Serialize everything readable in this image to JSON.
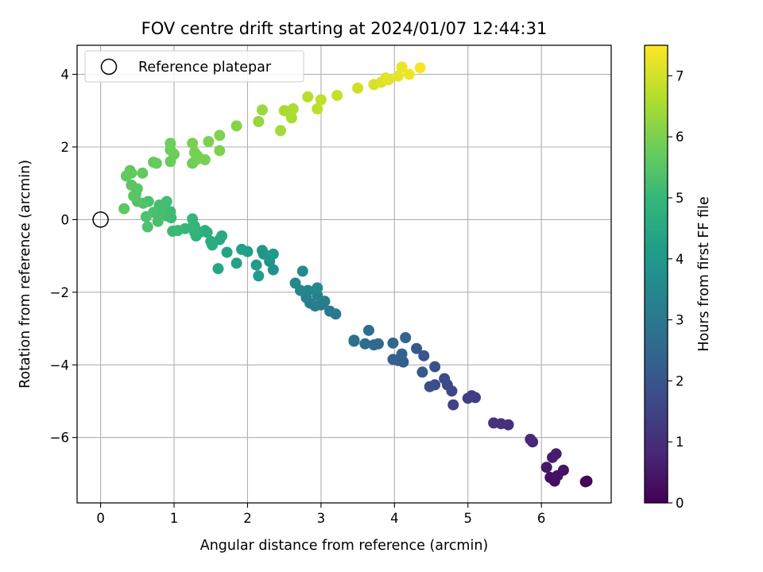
{
  "chart_data": {
    "type": "scatter",
    "title": "FOV centre drift starting at 2024/01/07 12:44:31",
    "xlabel": "Angular distance from reference (arcmin)",
    "ylabel": "Rotation from reference (arcmin)",
    "xlim": [
      -0.32,
      6.95
    ],
    "ylim": [
      -7.8,
      4.8
    ],
    "xticks": [
      0,
      1,
      2,
      3,
      4,
      5,
      6
    ],
    "yticks": [
      -6,
      -4,
      -2,
      0,
      2,
      4
    ],
    "xtick_labels": [
      "0",
      "1",
      "2",
      "3",
      "4",
      "5",
      "6"
    ],
    "ytick_labels": [
      "−6",
      "−4",
      "−2",
      "0",
      "2",
      "4"
    ],
    "grid": true,
    "legend": {
      "position": "top-left",
      "entries": [
        "Reference platepar"
      ]
    },
    "reference_point": {
      "x": 0,
      "y": 0,
      "label": "Reference platepar"
    },
    "colorbar": {
      "label": "Hours from first FF file",
      "range": [
        0,
        7.5
      ],
      "ticks": [
        0,
        1,
        2,
        3,
        4,
        5,
        6,
        7
      ],
      "tick_labels": [
        "0",
        "1",
        "2",
        "3",
        "4",
        "5",
        "6",
        "7"
      ],
      "colormap": "viridis",
      "stops": [
        "#440154",
        "#482878",
        "#3e4989",
        "#31688e",
        "#26828e",
        "#1f9e89",
        "#35b779",
        "#6ece58",
        "#b5de2b",
        "#fde725"
      ]
    },
    "series": [
      {
        "color_by": "Hours from first FF file",
        "points": [
          [
            6.62,
            -7.2,
            0.05
          ],
          [
            6.6,
            -7.22,
            0.1
          ],
          [
            6.18,
            -7.2,
            0.25
          ],
          [
            6.12,
            -7.1,
            0.3
          ],
          [
            6.22,
            -7.05,
            0.35
          ],
          [
            6.3,
            -6.9,
            0.4
          ],
          [
            6.07,
            -6.82,
            0.45
          ],
          [
            6.15,
            -6.55,
            0.55
          ],
          [
            6.2,
            -6.45,
            0.6
          ],
          [
            5.88,
            -6.12,
            0.8
          ],
          [
            5.85,
            -6.05,
            0.85
          ],
          [
            5.55,
            -5.65,
            1.0
          ],
          [
            5.45,
            -5.62,
            1.05
          ],
          [
            5.35,
            -5.6,
            1.1
          ],
          [
            5.1,
            -4.9,
            1.3
          ],
          [
            5.05,
            -4.85,
            1.35
          ],
          [
            5.0,
            -4.92,
            1.4
          ],
          [
            4.8,
            -5.1,
            1.5
          ],
          [
            4.78,
            -4.72,
            1.6
          ],
          [
            4.72,
            -4.55,
            1.65
          ],
          [
            4.68,
            -4.38,
            1.7
          ],
          [
            4.55,
            -4.55,
            1.8
          ],
          [
            4.48,
            -4.6,
            1.85
          ],
          [
            4.55,
            -4.05,
            1.9
          ],
          [
            4.4,
            -3.75,
            2.0
          ],
          [
            4.3,
            -3.55,
            2.05
          ],
          [
            4.38,
            -4.2,
            2.1
          ],
          [
            4.12,
            -3.92,
            2.2
          ],
          [
            4.05,
            -3.88,
            2.25
          ],
          [
            3.98,
            -3.85,
            2.3
          ],
          [
            4.1,
            -3.7,
            2.35
          ],
          [
            4.15,
            -3.25,
            2.4
          ],
          [
            3.98,
            -3.4,
            2.5
          ],
          [
            3.78,
            -3.42,
            2.55
          ],
          [
            3.72,
            -3.45,
            2.6
          ],
          [
            3.6,
            -3.42,
            2.65
          ],
          [
            3.65,
            -3.05,
            2.7
          ],
          [
            3.45,
            -3.32,
            2.75
          ],
          [
            3.45,
            -3.35,
            2.8
          ],
          [
            3.2,
            -2.6,
            3.0
          ],
          [
            3.12,
            -2.52,
            3.05
          ],
          [
            3.05,
            -2.25,
            3.1
          ],
          [
            3.0,
            -2.35,
            3.15
          ],
          [
            2.92,
            -2.38,
            3.2
          ],
          [
            2.85,
            -2.3,
            3.25
          ],
          [
            2.8,
            -2.15,
            3.3
          ],
          [
            2.95,
            -2.08,
            3.35
          ],
          [
            2.82,
            -1.95,
            3.4
          ],
          [
            2.72,
            -1.95,
            3.45
          ],
          [
            2.65,
            -1.75,
            3.5
          ],
          [
            2.95,
            -1.88,
            3.55
          ],
          [
            2.75,
            -1.42,
            3.6
          ],
          [
            2.35,
            -1.38,
            3.8
          ],
          [
            2.3,
            -1.15,
            3.85
          ],
          [
            2.22,
            -0.95,
            3.9
          ],
          [
            2.2,
            -0.85,
            3.95
          ],
          [
            2.3,
            -1.0,
            4.0
          ],
          [
            2.35,
            -0.95,
            4.05
          ],
          [
            2.12,
            -1.25,
            4.1
          ],
          [
            2.15,
            -1.55,
            4.15
          ],
          [
            2.0,
            -0.88,
            4.2
          ],
          [
            1.92,
            -0.82,
            4.25
          ],
          [
            1.85,
            -1.2,
            4.3
          ],
          [
            1.72,
            -0.9,
            4.35
          ],
          [
            1.6,
            -1.35,
            4.45
          ],
          [
            1.62,
            -0.55,
            4.5
          ],
          [
            1.65,
            -0.45,
            4.55
          ],
          [
            1.5,
            -0.6,
            4.6
          ],
          [
            1.52,
            -0.7,
            4.62
          ],
          [
            1.45,
            -0.35,
            4.65
          ],
          [
            1.42,
            -0.3,
            4.7
          ],
          [
            1.35,
            -0.35,
            4.75
          ],
          [
            1.3,
            -0.45,
            4.8
          ],
          [
            1.28,
            -0.35,
            4.85
          ],
          [
            1.25,
            -0.2,
            4.9
          ],
          [
            1.28,
            -0.18,
            4.92
          ],
          [
            1.25,
            0.02,
            4.95
          ],
          [
            1.15,
            -0.25,
            5.0
          ],
          [
            1.05,
            -0.3,
            5.05
          ],
          [
            0.98,
            -0.32,
            5.08
          ],
          [
            0.96,
            0.05,
            5.1
          ],
          [
            0.95,
            0.22,
            5.12
          ],
          [
            0.9,
            0.1,
            5.15
          ],
          [
            0.88,
            0.25,
            5.18
          ],
          [
            0.9,
            0.5,
            5.2
          ],
          [
            0.8,
            0.4,
            5.22
          ],
          [
            0.82,
            0.15,
            5.25
          ],
          [
            0.78,
            -0.05,
            5.28
          ],
          [
            0.72,
            0.2,
            5.3
          ],
          [
            0.65,
            0.5,
            5.32
          ],
          [
            0.62,
            0.08,
            5.35
          ],
          [
            0.64,
            -0.2,
            5.38
          ],
          [
            0.58,
            0.45,
            5.4
          ],
          [
            0.5,
            0.5,
            5.45
          ],
          [
            0.48,
            0.72,
            5.48
          ],
          [
            0.5,
            0.85,
            5.5
          ],
          [
            0.45,
            0.65,
            5.52
          ],
          [
            0.42,
            0.95,
            5.55
          ],
          [
            0.32,
            0.3,
            5.58
          ],
          [
            0.35,
            1.2,
            5.6
          ],
          [
            0.4,
            1.35,
            5.62
          ],
          [
            0.42,
            1.28,
            5.64
          ],
          [
            0.57,
            1.28,
            5.66
          ],
          [
            0.72,
            1.58,
            5.7
          ],
          [
            0.76,
            1.55,
            5.72
          ],
          [
            0.95,
            1.6,
            5.75
          ],
          [
            1.0,
            1.8,
            5.78
          ],
          [
            0.95,
            1.92,
            5.8
          ],
          [
            0.95,
            2.1,
            5.82
          ],
          [
            1.25,
            1.55,
            5.85
          ],
          [
            1.3,
            1.65,
            5.88
          ],
          [
            1.28,
            1.85,
            5.9
          ],
          [
            1.32,
            1.75,
            5.92
          ],
          [
            1.42,
            1.65,
            5.94
          ],
          [
            1.25,
            2.1,
            5.96
          ],
          [
            1.47,
            2.15,
            5.98
          ],
          [
            1.62,
            1.9,
            6.0
          ],
          [
            1.62,
            2.32,
            6.05
          ],
          [
            1.85,
            2.58,
            6.1
          ],
          [
            2.15,
            2.7,
            6.3
          ],
          [
            2.2,
            3.02,
            6.35
          ],
          [
            2.45,
            2.45,
            6.45
          ],
          [
            2.5,
            3.0,
            6.5
          ],
          [
            2.55,
            2.98,
            6.52
          ],
          [
            2.6,
            2.8,
            6.55
          ],
          [
            2.62,
            3.05,
            6.58
          ],
          [
            2.82,
            3.38,
            6.7
          ],
          [
            2.95,
            3.05,
            6.75
          ],
          [
            3.0,
            3.3,
            6.78
          ],
          [
            3.22,
            3.42,
            6.85
          ],
          [
            3.5,
            3.62,
            6.95
          ],
          [
            3.72,
            3.72,
            7.05
          ],
          [
            3.82,
            3.78,
            7.1
          ],
          [
            3.88,
            3.9,
            7.15
          ],
          [
            3.92,
            3.85,
            7.18
          ],
          [
            4.05,
            3.95,
            7.22
          ],
          [
            4.1,
            4.2,
            7.28
          ],
          [
            4.2,
            4.0,
            7.32
          ],
          [
            4.35,
            4.18,
            7.4
          ]
        ]
      }
    ]
  }
}
